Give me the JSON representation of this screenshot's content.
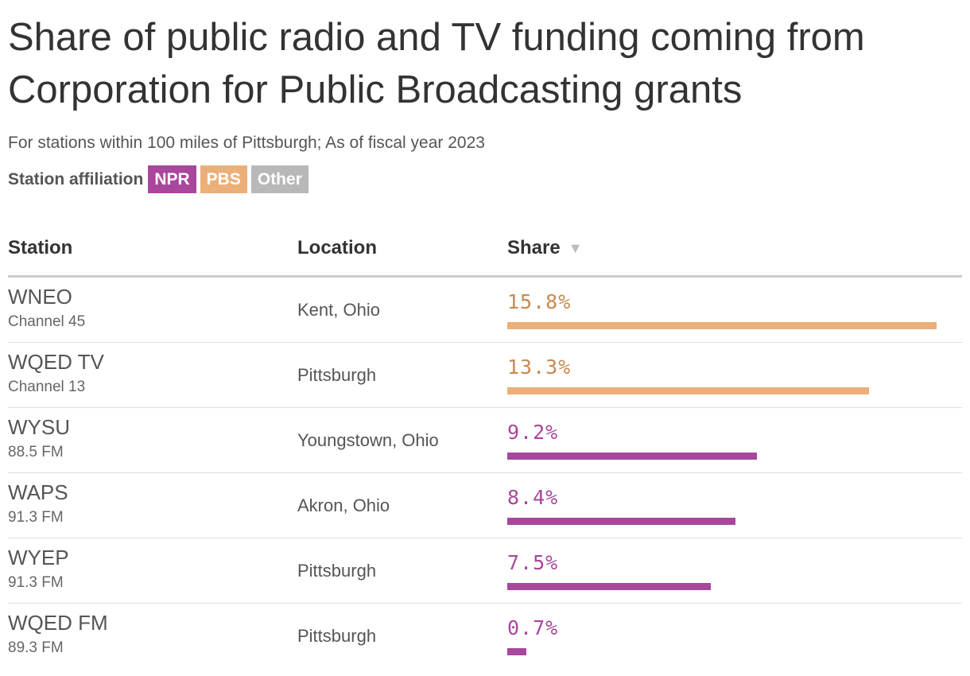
{
  "title": "Share of public radio and TV funding coming from Corporation for Public Broadcasting grants",
  "subtitle": "For stations within 100 miles of Pittsburgh; As of fiscal year 2023",
  "legend": {
    "label": "Station affiliation",
    "items": [
      {
        "name": "NPR",
        "color": "#a8479b"
      },
      {
        "name": "PBS",
        "color": "#ebb07a"
      },
      {
        "name": "Other",
        "color": "#b8b8b8"
      }
    ]
  },
  "columns": {
    "station": "Station",
    "location": "Location",
    "share": "Share",
    "sort_icon": "sort-down-icon"
  },
  "colors": {
    "NPR": "#a8479b",
    "PBS": "#ebb07a",
    "PBS_text": "#c8894e",
    "Other": "#b8b8b8"
  },
  "chart_data": {
    "type": "table",
    "title": "Share of public radio and TV funding coming from Corporation for Public Broadcasting grants",
    "subtitle": "For stations within 100 miles of Pittsburgh; As of fiscal year 2023",
    "value_unit": "%",
    "max_value": 15.8,
    "rows": [
      {
        "station": "WNEO",
        "sub": "Channel 45",
        "location": "Kent, Ohio",
        "share": 15.8,
        "share_label": "15.8%",
        "affiliation": "PBS"
      },
      {
        "station": "WQED TV",
        "sub": "Channel 13",
        "location": "Pittsburgh",
        "share": 13.3,
        "share_label": "13.3%",
        "affiliation": "PBS"
      },
      {
        "station": "WYSU",
        "sub": "88.5 FM",
        "location": "Youngstown, Ohio",
        "share": 9.2,
        "share_label": "9.2%",
        "affiliation": "NPR"
      },
      {
        "station": "WAPS",
        "sub": "91.3 FM",
        "location": "Akron, Ohio",
        "share": 8.4,
        "share_label": "8.4%",
        "affiliation": "NPR"
      },
      {
        "station": "WYEP",
        "sub": "91.3 FM",
        "location": "Pittsburgh",
        "share": 7.5,
        "share_label": "7.5%",
        "affiliation": "NPR"
      },
      {
        "station": "WQED FM",
        "sub": "89.3 FM",
        "location": "Pittsburgh",
        "share": 0.7,
        "share_label": "0.7%",
        "affiliation": "NPR"
      }
    ]
  }
}
